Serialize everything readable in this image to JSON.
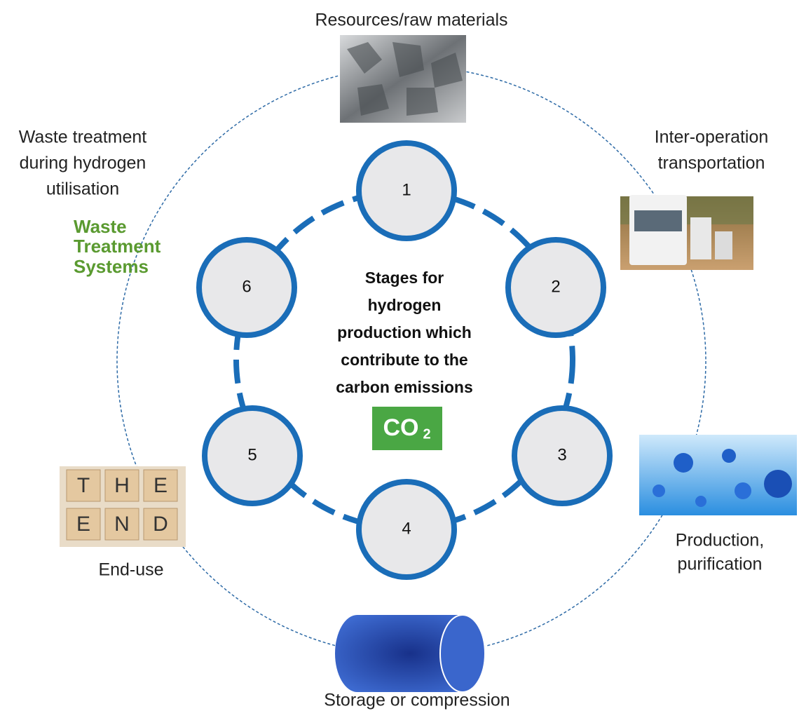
{
  "center": {
    "title_lines": [
      "Stages for",
      "hydrogen",
      "production which",
      "contribute to the",
      "carbon emissions"
    ],
    "badge": "CO",
    "badge_sub": "2"
  },
  "nodes": [
    {
      "label": "1"
    },
    {
      "label": "2"
    },
    {
      "label": "3"
    },
    {
      "label": "4"
    },
    {
      "label": "5"
    },
    {
      "label": "6"
    }
  ],
  "stages": {
    "resources": [
      "Resources/raw materials"
    ],
    "transport": [
      "Inter-operation",
      "transportation"
    ],
    "production": [
      "Production,",
      "purification"
    ],
    "storage": [
      "Storage or compression"
    ],
    "end_use": [
      "End-use"
    ],
    "waste": [
      "Waste treatment",
      "during hydrogen",
      "utilisation"
    ]
  },
  "images": {
    "waste_sign": [
      "Waste",
      "Treatment",
      "Systems"
    ],
    "tiles": [
      "T",
      "H",
      "E",
      "E",
      "N",
      "D"
    ]
  }
}
